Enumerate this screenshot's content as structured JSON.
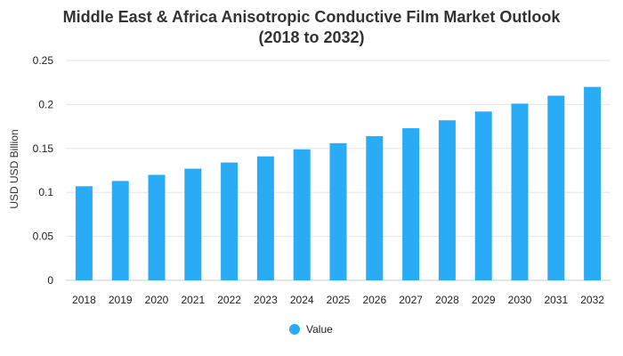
{
  "chart_data": {
    "type": "bar",
    "title_line1": "Middle East & Africa Anisotropic Conductive Film Market Outlook",
    "title_line2": "(2018 to 2032)",
    "xlabel": "",
    "ylabel": "USD USD Billion",
    "categories": [
      "2018",
      "2019",
      "2020",
      "2021",
      "2022",
      "2023",
      "2024",
      "2025",
      "2026",
      "2027",
      "2028",
      "2029",
      "2030",
      "2031",
      "2032"
    ],
    "series": [
      {
        "name": "Value",
        "color": "#2AABF5",
        "values": [
          0.107,
          0.113,
          0.12,
          0.127,
          0.134,
          0.141,
          0.149,
          0.156,
          0.164,
          0.173,
          0.182,
          0.192,
          0.201,
          0.21,
          0.22
        ]
      }
    ],
    "ylim": [
      0,
      0.25
    ],
    "yticks": [
      "0",
      "0.05",
      "0.1",
      "0.15",
      "0.2",
      "0.25"
    ],
    "grid": true,
    "legend_position": "bottom-center"
  }
}
